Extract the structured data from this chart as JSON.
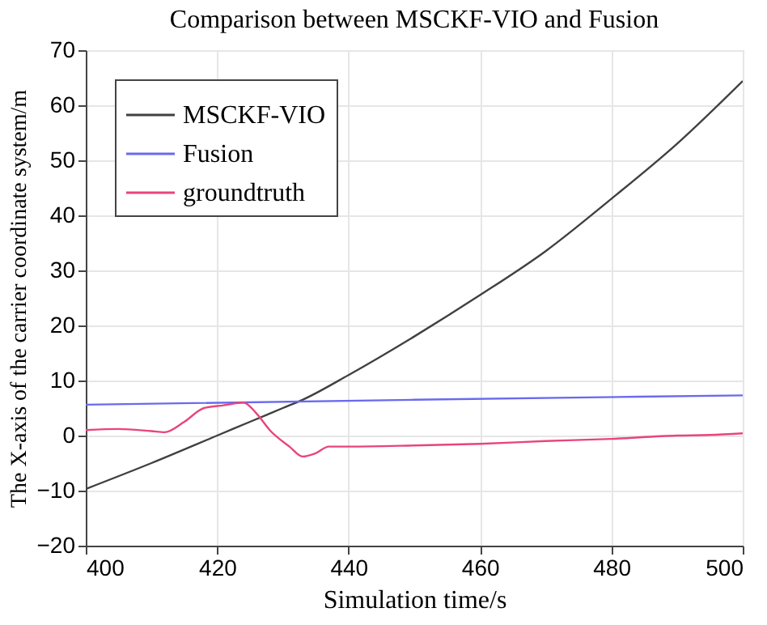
{
  "chart_data": {
    "type": "line",
    "title": "Comparison between MSCKF-VIO and Fusion",
    "xlabel": "Simulation time/s",
    "ylabel": "The X-axis of the carrier coordinate system/m",
    "xlim": [
      400,
      500
    ],
    "xticks": [
      400,
      420,
      440,
      460,
      480,
      500
    ],
    "ylim": [
      -20,
      70
    ],
    "yticks": [
      -20,
      -10,
      0,
      10,
      20,
      30,
      40,
      50,
      60,
      70
    ],
    "grid": true,
    "legend": "top left",
    "line_style": "solid",
    "marker": "none",
    "series": [
      {
        "name": "MSCKF-VIO",
        "color": "#404040",
        "x": [
          400,
          410,
          420,
          425,
          430,
          433,
          440,
          450,
          460,
          470,
          480,
          490,
          500
        ],
        "values": [
          -9.7,
          -5,
          0,
          2.5,
          5,
          6.5,
          11,
          18,
          25.5,
          33.5,
          43,
          53,
          64.4
        ]
      },
      {
        "name": "Fusion",
        "color": "#6a6aee",
        "x": [
          400,
          450,
          500
        ],
        "values": [
          5.6,
          6.5,
          7.3
        ]
      },
      {
        "name": "groundtruth",
        "color": "#e8457a",
        "x": [
          400,
          405,
          410,
          412,
          415,
          418,
          421,
          424,
          426,
          428,
          431,
          433,
          435,
          437,
          440,
          450,
          460,
          470,
          480,
          490,
          495,
          500
        ],
        "values": [
          1,
          1.2,
          0.8,
          0.6,
          2.5,
          5,
          5.5,
          6,
          4,
          1,
          -2,
          -3.8,
          -3.2,
          -2,
          -2,
          -1.8,
          -1.5,
          -1,
          -0.6,
          0,
          0.1,
          0.4
        ]
      }
    ]
  }
}
